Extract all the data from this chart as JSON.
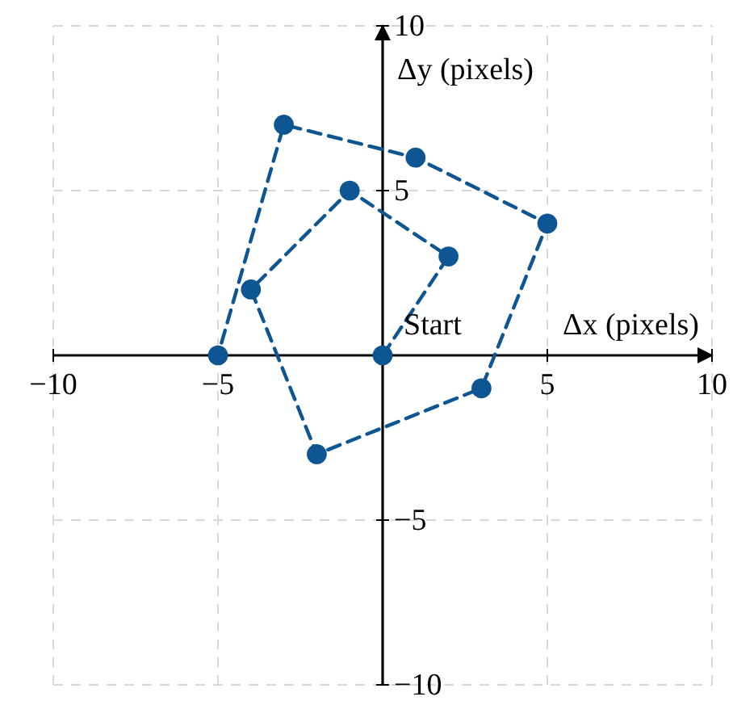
{
  "chart_data": {
    "type": "line",
    "xlabel": "Δx (pixels)",
    "ylabel": "Δy (pixels)",
    "annotations": [
      {
        "text": "Start",
        "x": 0,
        "y": 0
      }
    ],
    "series": [
      {
        "color": "#0e5593",
        "x": [
          0,
          2,
          -1,
          -4,
          -2,
          3,
          5,
          1,
          -3,
          -5
        ],
        "values": [
          0,
          3,
          5,
          2,
          -3,
          -1,
          4,
          6,
          7,
          0
        ]
      }
    ],
    "xlim": [
      -10,
      10
    ],
    "ylim": [
      -10,
      10
    ],
    "xticks": [
      -10,
      -5,
      5,
      10
    ],
    "yticks": [
      -10,
      -5,
      5,
      10
    ],
    "grid": true,
    "marker": "circle",
    "line_style": "dashed"
  }
}
